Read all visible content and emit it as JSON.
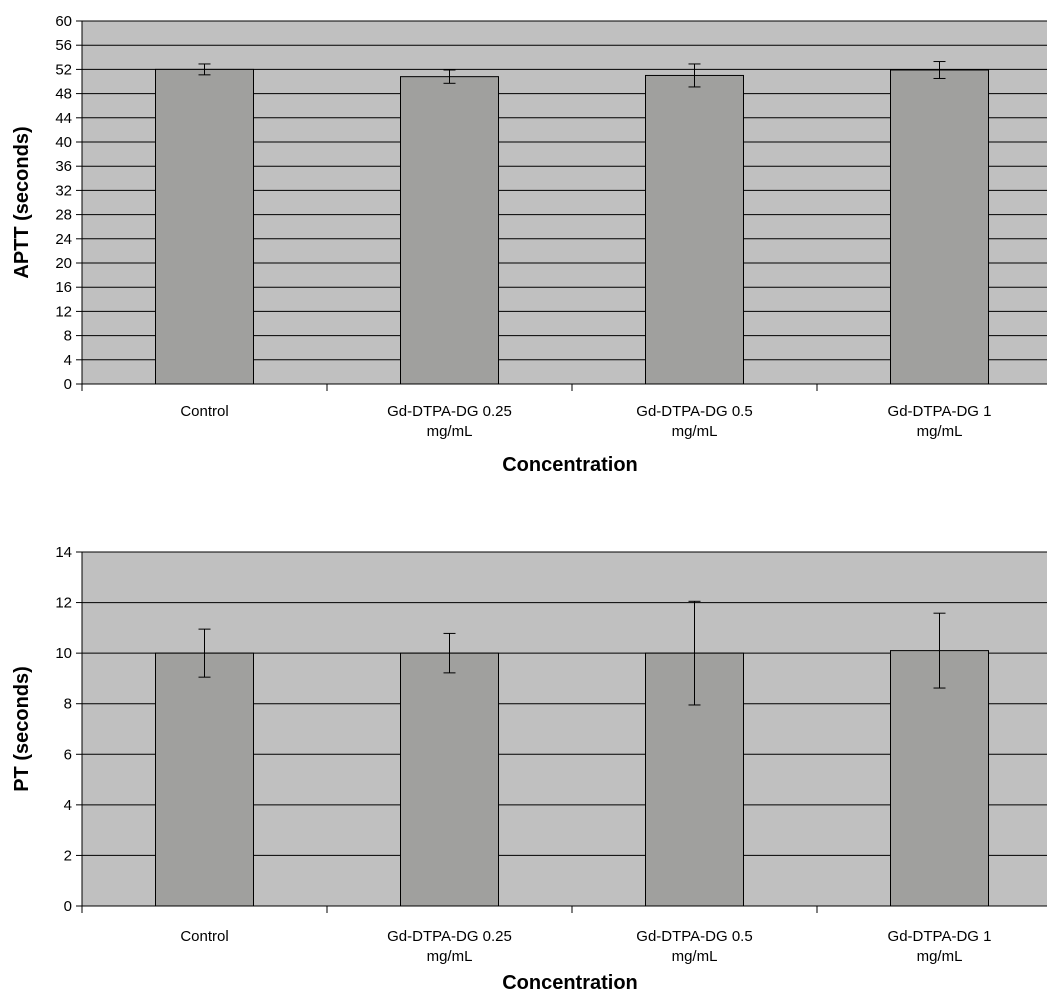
{
  "chart_data": [
    {
      "type": "bar",
      "categories": [
        [
          "Control"
        ],
        [
          "Gd-DTPA-DG 0.25",
          "mg/mL"
        ],
        [
          "Gd-DTPA-DG 0.5",
          "mg/mL"
        ],
        [
          "Gd-DTPA-DG 1",
          "mg/mL"
        ]
      ],
      "values": [
        52.0,
        50.8,
        51.0,
        51.9
      ],
      "errors": [
        0.9,
        1.1,
        1.9,
        1.4
      ],
      "xlabel": "Concentration",
      "ylabel": "APTT (seconds)",
      "ylim": [
        0,
        60
      ],
      "yticks": [
        0,
        4,
        8,
        12,
        16,
        20,
        24,
        28,
        32,
        36,
        40,
        44,
        48,
        52,
        56,
        60
      ],
      "grid": true,
      "legend": "none"
    },
    {
      "type": "bar",
      "categories": [
        [
          "Control"
        ],
        [
          "Gd-DTPA-DG 0.25",
          "mg/mL"
        ],
        [
          "Gd-DTPA-DG 0.5",
          "mg/mL"
        ],
        [
          "Gd-DTPA-DG 1",
          "mg/mL"
        ]
      ],
      "values": [
        10.0,
        10.0,
        10.0,
        10.1
      ],
      "errors": [
        0.95,
        0.78,
        2.05,
        1.48
      ],
      "xlabel": "Concentration",
      "ylabel": "PT (seconds)",
      "ylim": [
        0,
        14
      ],
      "yticks": [
        0,
        2,
        4,
        6,
        8,
        10,
        12,
        14
      ],
      "grid": true,
      "legend": "none"
    }
  ],
  "colors": {
    "plot_background": "#c0c0c0",
    "bar_fill": "#a0a09e",
    "bar_stroke": "#000000",
    "gridline": "#000000"
  }
}
